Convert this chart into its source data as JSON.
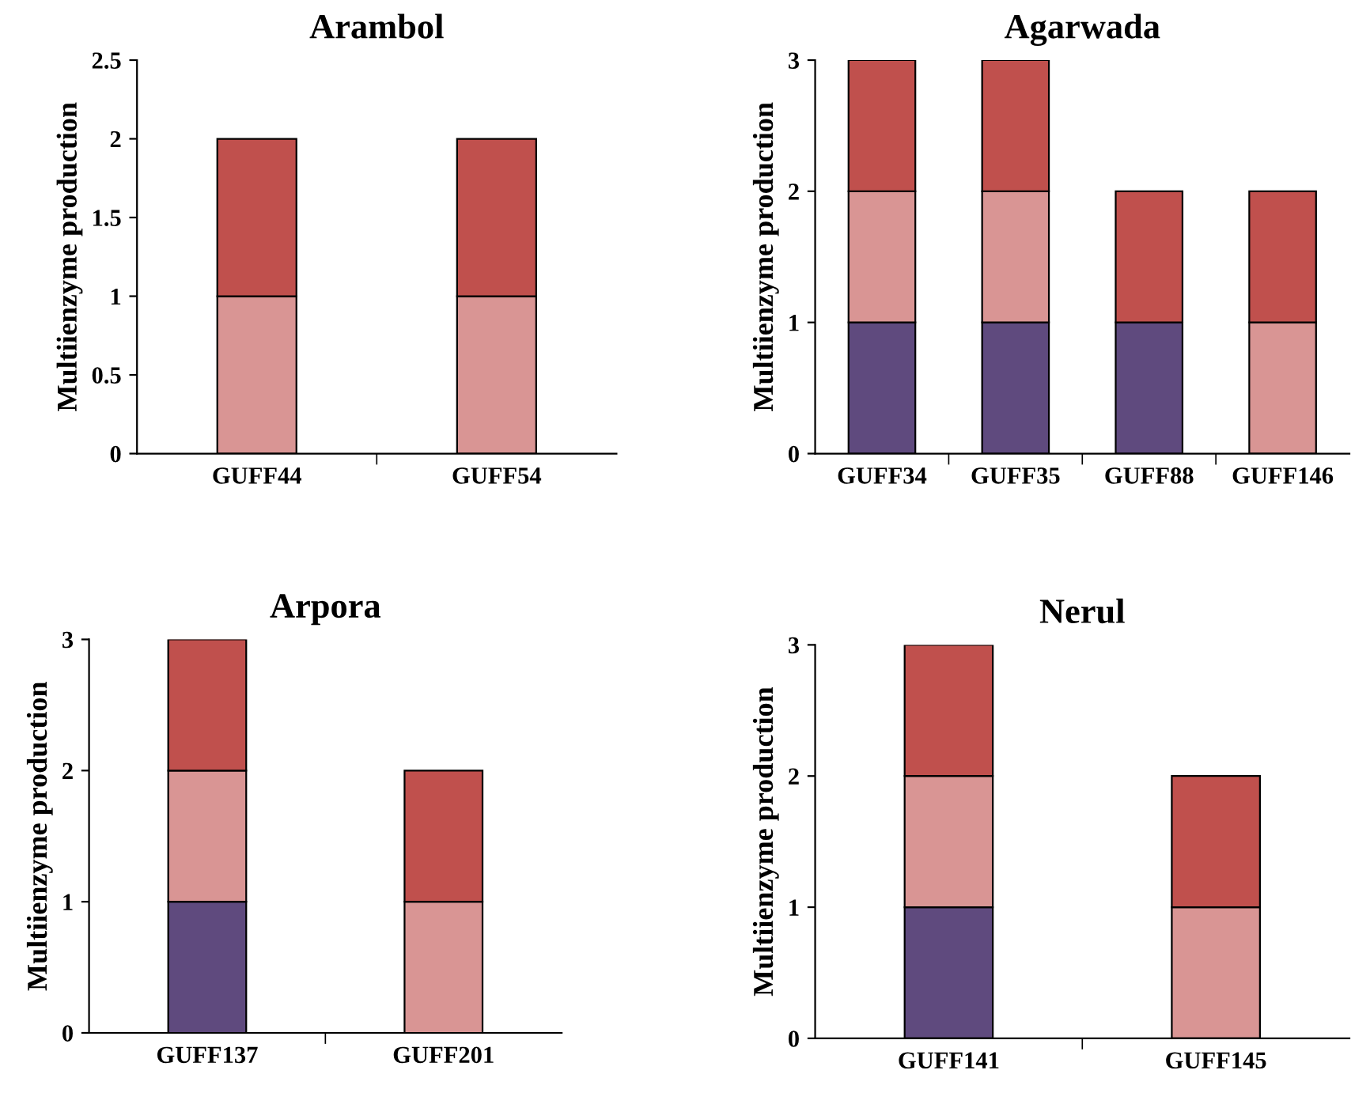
{
  "chart_data": [
    {
      "type": "bar",
      "title": "Arambol",
      "ylabel": "Multiienzyme production",
      "stacked": true,
      "grid": false,
      "legend": false,
      "categories": [
        "GUFF44",
        "GUFF54"
      ],
      "ylim": [
        0,
        2.5
      ],
      "yticks": [
        0,
        0.5,
        1,
        1.5,
        2,
        2.5
      ],
      "series": [
        {
          "color": "#d99594",
          "values": [
            1,
            1
          ]
        },
        {
          "color": "#c0504d",
          "values": [
            1,
            1
          ]
        }
      ]
    },
    {
      "type": "bar",
      "title": "Agarwada",
      "ylabel": "Multiienzyme production",
      "stacked": true,
      "grid": false,
      "legend": false,
      "categories": [
        "GUFF34",
        "GUFF35",
        "GUFF88",
        "GUFF146"
      ],
      "ylim": [
        0,
        3
      ],
      "yticks": [
        0,
        1,
        2,
        3
      ],
      "series": [
        {
          "color": "#5f4a7e",
          "values": [
            1,
            1,
            1,
            null
          ]
        },
        {
          "color": "#d99594",
          "values": [
            1,
            1,
            null,
            1
          ]
        },
        {
          "color": "#c0504d",
          "values": [
            1,
            1,
            1,
            1
          ]
        }
      ]
    },
    {
      "type": "bar",
      "title": "Arpora",
      "ylabel": "Multiienzyme production",
      "stacked": true,
      "grid": false,
      "legend": false,
      "categories": [
        "GUFF137",
        "GUFF201"
      ],
      "ylim": [
        0,
        3
      ],
      "yticks": [
        0,
        1,
        2,
        3
      ],
      "series": [
        {
          "color": "#5f4a7e",
          "values": [
            1,
            null
          ]
        },
        {
          "color": "#d99594",
          "values": [
            1,
            1
          ]
        },
        {
          "color": "#c0504d",
          "values": [
            1,
            1
          ]
        }
      ]
    },
    {
      "type": "bar",
      "title": "Nerul",
      "ylabel": "Multiienzyme production",
      "stacked": true,
      "grid": false,
      "legend": false,
      "categories": [
        "GUFF141",
        "GUFF145"
      ],
      "ylim": [
        0,
        3
      ],
      "yticks": [
        0,
        1,
        2,
        3
      ],
      "series": [
        {
          "color": "#5f4a7e",
          "values": [
            1,
            null
          ]
        },
        {
          "color": "#d99594",
          "values": [
            1,
            1
          ]
        },
        {
          "color": "#c0504d",
          "values": [
            1,
            1
          ]
        }
      ]
    }
  ]
}
